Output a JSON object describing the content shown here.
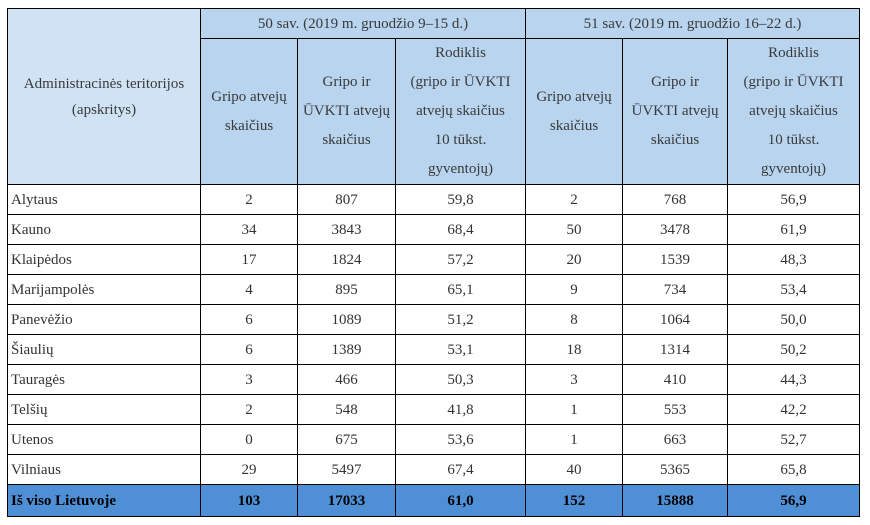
{
  "table": {
    "region_header": [
      "Administracinės teritorijos",
      "(apskritys)"
    ],
    "week_headers": [
      "50 sav. (2019 m. gruodžio 9–15 d.)",
      "51 sav. (2019 m. gruodžio 16–22 d.)"
    ],
    "sub_headers": {
      "cases": [
        "Gripo atvejų",
        "skaičius"
      ],
      "flu_ari": [
        "Gripo ir",
        "ŪVKTI atvejų",
        "skaičius"
      ],
      "rate": [
        "Rodiklis",
        "(gripo ir ŪVKTI",
        "atvejų skaičius",
        "10 tūkst.",
        "gyventojų)"
      ]
    },
    "rows": [
      {
        "name": "Alytaus",
        "w50": [
          "2",
          "807",
          "59,8"
        ],
        "w51": [
          "2",
          "768",
          "56,9"
        ]
      },
      {
        "name": "Kauno",
        "w50": [
          "34",
          "3843",
          "68,4"
        ],
        "w51": [
          "50",
          "3478",
          "61,9"
        ]
      },
      {
        "name": "Klaipėdos",
        "w50": [
          "17",
          "1824",
          "57,2"
        ],
        "w51": [
          "20",
          "1539",
          "48,3"
        ]
      },
      {
        "name": "Marijampolės",
        "w50": [
          "4",
          "895",
          "65,1"
        ],
        "w51": [
          "9",
          "734",
          "53,4"
        ]
      },
      {
        "name": "Panevėžio",
        "w50": [
          "6",
          "1089",
          "51,2"
        ],
        "w51": [
          "8",
          "1064",
          "50,0"
        ]
      },
      {
        "name": "Šiaulių",
        "w50": [
          "6",
          "1389",
          "53,1"
        ],
        "w51": [
          "18",
          "1314",
          "50,2"
        ]
      },
      {
        "name": "Tauragės",
        "w50": [
          "3",
          "466",
          "50,3"
        ],
        "w51": [
          "3",
          "410",
          "44,3"
        ]
      },
      {
        "name": "Telšių",
        "w50": [
          "2",
          "548",
          "41,8"
        ],
        "w51": [
          "1",
          "553",
          "42,2"
        ]
      },
      {
        "name": "Utenos",
        "w50": [
          "0",
          "675",
          "53,6"
        ],
        "w51": [
          "1",
          "663",
          "52,7"
        ]
      },
      {
        "name": "Vilniaus",
        "w50": [
          "29",
          "5497",
          "67,4"
        ],
        "w51": [
          "40",
          "5365",
          "65,8"
        ]
      }
    ],
    "total": {
      "name": "Iš viso Lietuvoje",
      "w50": [
        "103",
        "17033",
        "61,0"
      ],
      "w51": [
        "152",
        "15888",
        "56,9"
      ]
    }
  },
  "colors": {
    "header_bg": "#b8d4ef",
    "region_header_bg": "#d0e3f5",
    "total_bg": "#4f8fd6"
  }
}
